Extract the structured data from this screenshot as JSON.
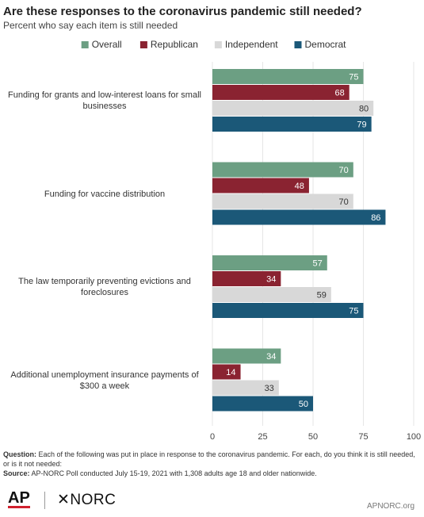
{
  "chart_data": {
    "type": "hbar",
    "title": "Are these responses to the coronavirus pandemic still needed?",
    "subtitle": "Percent who say each item is still needed",
    "categories": [
      "Funding for grants and low-interest loans for small businesses",
      "Funding for vaccine distribution",
      "The law temporarily preventing evictions and foreclosures",
      "Additional unemployment insurance payments of $300 a week"
    ],
    "series": [
      {
        "name": "Overall",
        "color": "#6c9f83",
        "values": [
          75,
          70,
          57,
          34
        ]
      },
      {
        "name": "Republican",
        "color": "#8a2331",
        "values": [
          68,
          48,
          34,
          14
        ]
      },
      {
        "name": "Independent",
        "color": "#d8d8d8",
        "values": [
          80,
          70,
          59,
          33
        ]
      },
      {
        "name": "Democrat",
        "color": "#1b5878",
        "values": [
          79,
          86,
          75,
          50
        ]
      }
    ],
    "xlim": [
      0,
      100
    ],
    "xticks": [
      0,
      25,
      50,
      75,
      100
    ],
    "grid": true,
    "legend": "top",
    "question_label": "Question:",
    "question": "Each of the following was put in place in response to the coronavirus pandemic. For each, do you think it is still needed, or is it not needed:",
    "source_label": "Source:",
    "source": "AP-NORC Poll conducted July 15-19, 2021 with 1,308 adults age 18 and older nationwide.",
    "logo_left": "AP",
    "logo_right": "✕NORC",
    "site": "APNORC.org"
  }
}
